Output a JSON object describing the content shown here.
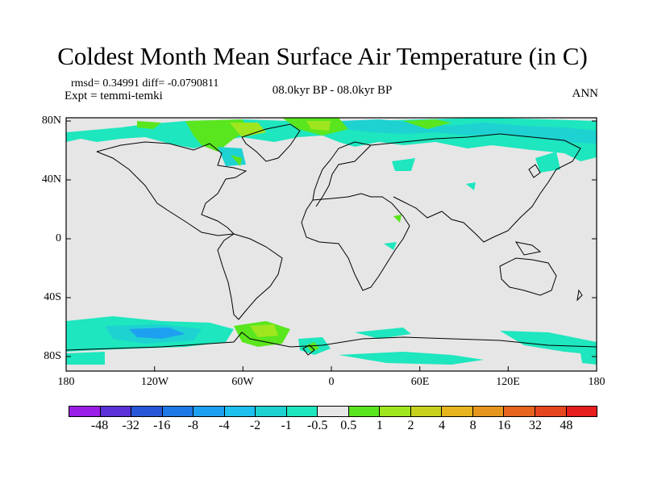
{
  "title": "Coldest Month Mean Surface Air Temperature (in C)",
  "stats": "rmsd= 0.34991  diff= -0.0790811",
  "expt": "Expt = temmi-temki",
  "center_label": "08.0kyr BP - 08.0kyr BP",
  "season": "ANN",
  "lat_ticks": [
    "80N",
    "40N",
    "0",
    "40S",
    "80S"
  ],
  "lon_ticks": [
    "180",
    "120W",
    "60W",
    "0",
    "60E",
    "120E",
    "180"
  ],
  "legend": {
    "labels": [
      "-48",
      "-32",
      "-16",
      "-8",
      "-4",
      "-2",
      "-1",
      "-0.5",
      "0.5",
      "1",
      "2",
      "4",
      "8",
      "16",
      "32",
      "48"
    ],
    "colors": [
      "#9a1ee6",
      "#5a32d8",
      "#2858d8",
      "#1e78e6",
      "#1ea0f0",
      "#1ec0f0",
      "#1ed2d2",
      "#1ee6be",
      "#e6e6e6",
      "#5ae61e",
      "#a0e61e",
      "#c8d21e",
      "#e6b41e",
      "#e6961e",
      "#e6641e",
      "#e6461e",
      "#e61e1e"
    ]
  },
  "map_colors": {
    "background": "#e6e6e6",
    "teal": "#1ee6be",
    "cyan": "#1ed2d2",
    "blue": "#1ea0f0",
    "green": "#5ae61e",
    "yellow_green": "#a0e61e",
    "coast": "#000000"
  }
}
